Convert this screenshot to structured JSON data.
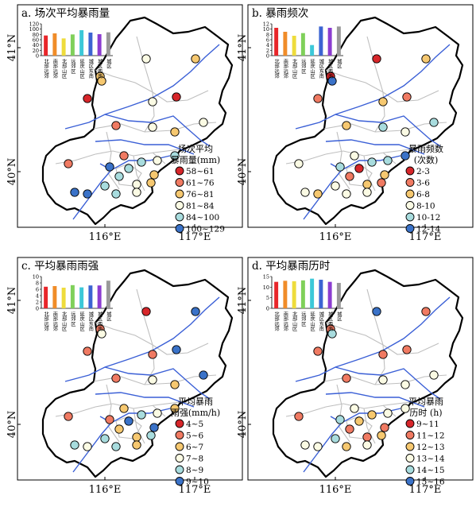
{
  "lon_labels": [
    "116°E",
    "117°E"
  ],
  "lat_labels": [
    "41°N",
    "40°N"
  ],
  "district_categories": [
    "北部远郊",
    "南部远郊",
    "北部山区",
    "远郊区",
    "延庆山区",
    "城区东南",
    "城区西南",
    "城区"
  ],
  "bar_colors": [
    "#e8262a",
    "#f08c28",
    "#eedc3c",
    "#7fd05a",
    "#3cc8d8",
    "#3c64d2",
    "#8c3cd0",
    "#9a9a9a"
  ],
  "panels": [
    {
      "title": "a. 场次平均暴雨量",
      "legend_title": [
        "场次平均",
        "暴雨量(mm)"
      ],
      "legend_items": [
        {
          "label": "58~61",
          "color": "#d7262a"
        },
        {
          "label": "61~76",
          "color": "#f07a62"
        },
        {
          "label": "76~81",
          "color": "#f6c870"
        },
        {
          "label": "81~84",
          "color": "#fbfbe4"
        },
        {
          "label": "84~100",
          "color": "#a8dcde"
        },
        {
          "label": "100~129",
          "color": "#3a72c8"
        }
      ],
      "bar_chart": {
        "ylim": [
          0,
          120
        ],
        "ticks": [
          0,
          20,
          40,
          60,
          80,
          100,
          120
        ],
        "values": [
          76,
          84,
          65,
          80,
          96,
          87,
          81,
          88
        ]
      },
      "stations": [
        3,
        1,
        2,
        4,
        3,
        4,
        1,
        3,
        4,
        4,
        3,
        2,
        2,
        5,
        5,
        4,
        3,
        5,
        6,
        6,
        5,
        4,
        3,
        5,
        5,
        4,
        6
      ]
    },
    {
      "title": "b. 暴雨频次",
      "legend_title": [
        "暴雨频数",
        "(次数)"
      ],
      "legend_items": [
        {
          "label": "2-3",
          "color": "#d7262a"
        },
        {
          "label": "3-6",
          "color": "#f07a62"
        },
        {
          "label": "6-8",
          "color": "#f6c870"
        },
        {
          "label": "8-10",
          "color": "#fbfbe4"
        },
        {
          "label": "10-12",
          "color": "#a8dcde"
        },
        {
          "label": "12-14",
          "color": "#3a72c8"
        }
      ],
      "bar_chart": {
        "ylim": [
          0,
          12
        ],
        "ticks": [
          0,
          2,
          4,
          6,
          8,
          10,
          12
        ],
        "values": [
          10.5,
          9,
          7.5,
          8.5,
          4,
          11,
          10.5,
          11
        ]
      },
      "stations": [
        1,
        2,
        3,
        1,
        3,
        3,
        2,
        6,
        5,
        5,
        4,
        4,
        4,
        5,
        6,
        5,
        3,
        1,
        5,
        4,
        2,
        3,
        2,
        4,
        4,
        4,
        3
      ]
    },
    {
      "title": "c. 平均暴雨雨强",
      "legend_title": [
        "平均暴雨",
        "雨强(mm/h)"
      ],
      "legend_items": [
        {
          "label": "4~5",
          "color": "#d7262a"
        },
        {
          "label": "5~6",
          "color": "#f07a62"
        },
        {
          "label": "6~7",
          "color": "#f6c870"
        },
        {
          "label": "7~8",
          "color": "#fbfbe4"
        },
        {
          "label": "8~9",
          "color": "#a8dcde"
        },
        {
          "label": "9~10",
          "color": "#3a72c8"
        }
      ],
      "bar_chart": {
        "ylim": [
          0,
          10
        ],
        "ticks": [
          0,
          2,
          4,
          6,
          8,
          10
        ],
        "values": [
          6.8,
          7,
          6.5,
          7.3,
          6.6,
          7.2,
          7.2,
          8.7
        ]
      },
      "stations": [
        2,
        2,
        2,
        1,
        6,
        2,
        6,
        4,
        4,
        6,
        3,
        2,
        3,
        5,
        3,
        4,
        6,
        6,
        2,
        5,
        3,
        3,
        5,
        5,
        5,
        3,
        4
      ]
    },
    {
      "title": "d. 平均暴雨历时",
      "legend_title": [
        "平均暴雨",
        "历时 (h)"
      ],
      "legend_items": [
        {
          "label": "9~11",
          "color": "#d7262a"
        },
        {
          "label": "11~12",
          "color": "#f07a62"
        },
        {
          "label": "12~13",
          "color": "#f6c870"
        },
        {
          "label": "13~14",
          "color": "#fbfbe4"
        },
        {
          "label": "14~15",
          "color": "#a8dcde"
        },
        {
          "label": "15~16",
          "color": "#3a72c8"
        }
      ],
      "bar_chart": {
        "ylim": [
          0,
          15
        ],
        "ticks": [
          0,
          5,
          10,
          15
        ],
        "values": [
          12.5,
          13,
          12.8,
          13.2,
          14,
          13.5,
          12.5,
          12
        ]
      },
      "stations": [
        2,
        2,
        2,
        6,
        2,
        2,
        2,
        5,
        4,
        4,
        4,
        2,
        4,
        3,
        4,
        4,
        2,
        3,
        5,
        4,
        2,
        2,
        3,
        5,
        3,
        4,
        4
      ]
    }
  ]
}
